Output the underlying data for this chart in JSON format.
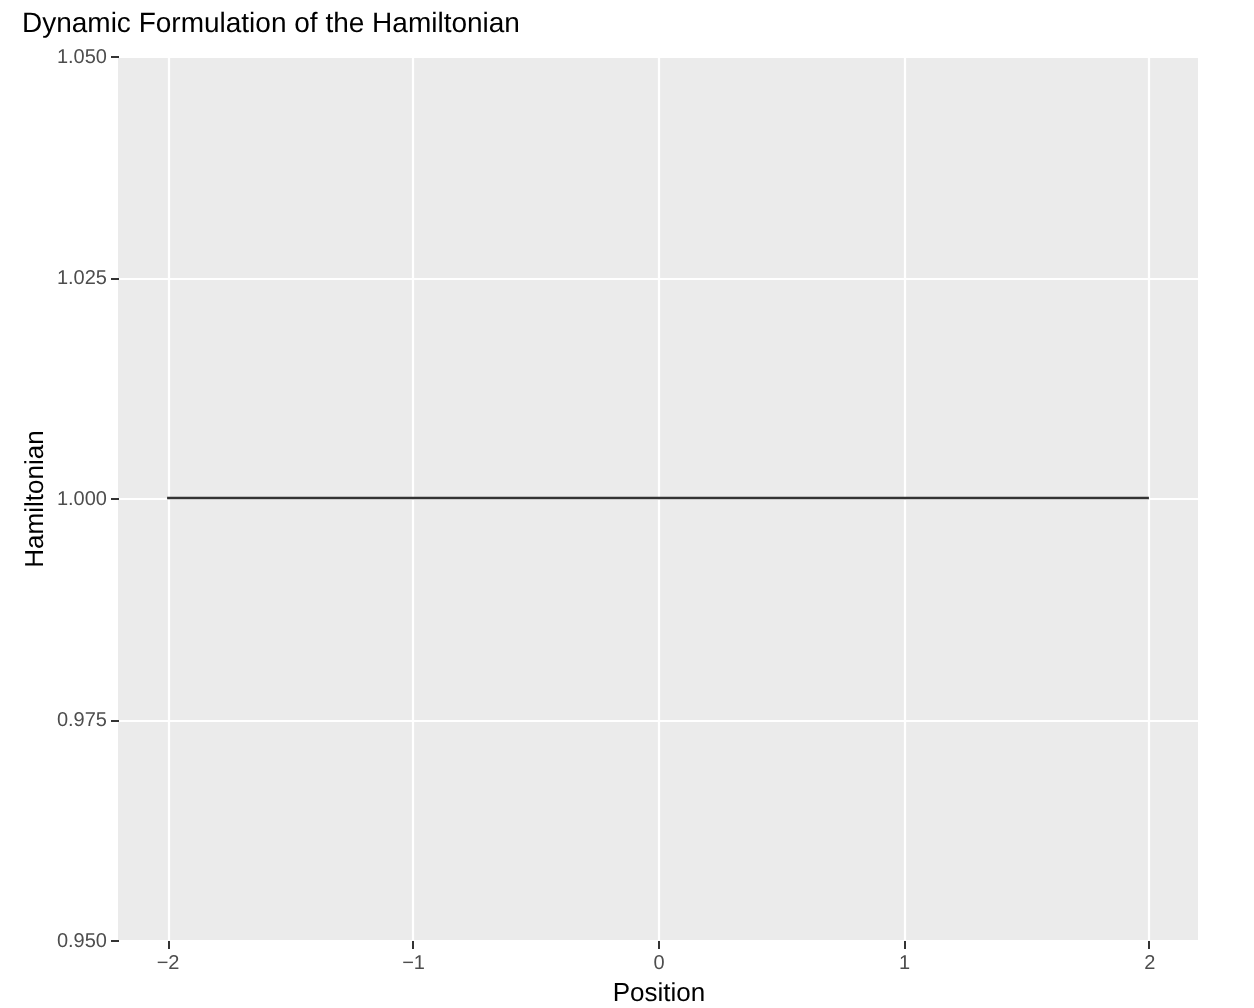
{
  "chart_data": {
    "type": "line",
    "title": "Dynamic Formulation of the Hamiltonian",
    "xlabel": "Position",
    "ylabel": "Hamiltonian",
    "x": [
      -2,
      2
    ],
    "series": [
      {
        "color": "#333333",
        "values": [
          1,
          1
        ]
      }
    ],
    "xlim": [
      -2.2,
      2.2
    ],
    "xticks": [
      -2,
      -1,
      0,
      1,
      2
    ],
    "ylim": [
      0.95,
      1.05
    ],
    "yticks": [
      {
        "value": 0.95,
        "label": "0.950"
      },
      {
        "value": 0.975,
        "label": "0.975"
      },
      {
        "value": 1.0,
        "label": "1.000"
      },
      {
        "value": 1.025,
        "label": "1.025"
      },
      {
        "value": 1.05,
        "label": "1.050"
      }
    ],
    "grid": true,
    "marker": "none",
    "line_style": "solid"
  }
}
